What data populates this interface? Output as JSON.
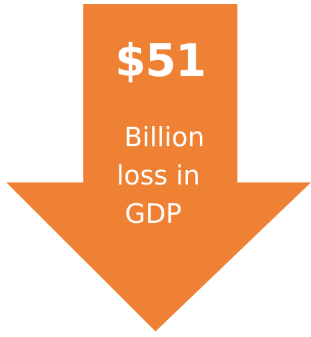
{
  "graphic": {
    "fill_color": "#ee8134",
    "text_color": "#ffffff",
    "amount": "$51",
    "caption_lines": [
      "Billion",
      "loss in",
      "GDP"
    ]
  }
}
